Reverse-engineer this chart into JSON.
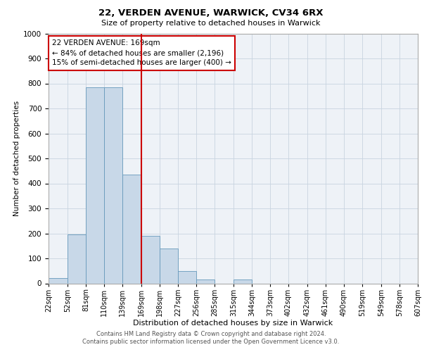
{
  "title": "22, VERDEN AVENUE, WARWICK, CV34 6RX",
  "subtitle": "Size of property relative to detached houses in Warwick",
  "xlabel": "Distribution of detached houses by size in Warwick",
  "ylabel": "Number of detached properties",
  "bin_labels": [
    "22sqm",
    "52sqm",
    "81sqm",
    "110sqm",
    "139sqm",
    "169sqm",
    "198sqm",
    "227sqm",
    "256sqm",
    "285sqm",
    "315sqm",
    "344sqm",
    "373sqm",
    "402sqm",
    "432sqm",
    "461sqm",
    "490sqm",
    "519sqm",
    "549sqm",
    "578sqm",
    "607sqm"
  ],
  "bin_edges": [
    22,
    52,
    81,
    110,
    139,
    169,
    198,
    227,
    256,
    285,
    315,
    344,
    373,
    402,
    432,
    461,
    490,
    519,
    549,
    578,
    607
  ],
  "bar_heights": [
    20,
    195,
    785,
    785,
    435,
    190,
    140,
    50,
    15,
    0,
    15,
    0,
    0,
    0,
    0,
    0,
    0,
    0,
    0,
    0
  ],
  "bar_color": "#c8d8e8",
  "bar_edge_color": "#6699bb",
  "vline_x": 169,
  "vline_color": "#cc0000",
  "annotation_line1": "22 VERDEN AVENUE: 169sqm",
  "annotation_line2": "← 84% of detached houses are smaller (2,196)",
  "annotation_line3": "15% of semi-detached houses are larger (400) →",
  "annotation_box_color": "#ffffff",
  "annotation_box_edge_color": "#cc0000",
  "ylim": [
    0,
    1000
  ],
  "yticks": [
    0,
    100,
    200,
    300,
    400,
    500,
    600,
    700,
    800,
    900,
    1000
  ],
  "bg_color": "#eef2f7",
  "grid_color": "#c8d4e0",
  "footer_line1": "Contains HM Land Registry data © Crown copyright and database right 2024.",
  "footer_line2": "Contains public sector information licensed under the Open Government Licence v3.0."
}
